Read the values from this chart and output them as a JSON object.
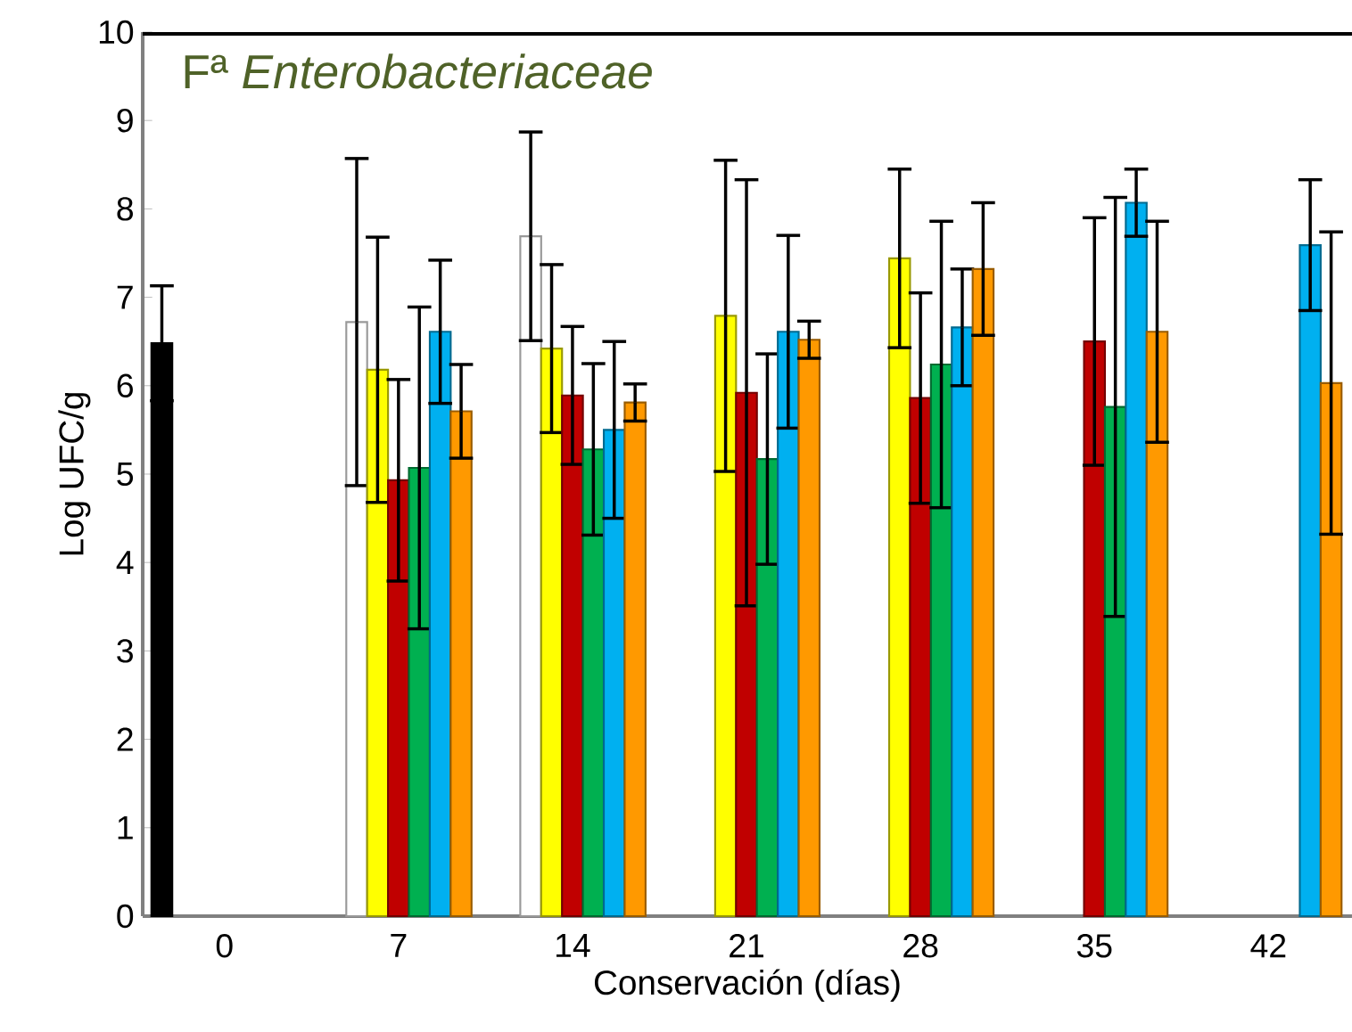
{
  "chart_data": {
    "type": "bar",
    "title": "Fª *Enterobacteriaceae*",
    "xlabel": "Conservación (días)",
    "ylabel": "Log UFC/g",
    "categories": [
      "0",
      "7",
      "14",
      "21",
      "28",
      "35",
      "42"
    ],
    "series": [
      {
        "color": "#000000",
        "values": [
          6.48,
          null,
          null,
          null,
          null,
          null,
          null
        ],
        "errors": [
          0.65,
          null,
          null,
          null,
          null,
          null,
          null
        ]
      },
      {
        "color": "#ffffff",
        "values": [
          null,
          6.72,
          7.69,
          null,
          null,
          null,
          null
        ],
        "errors": [
          null,
          1.85,
          1.18,
          null,
          null,
          null,
          null
        ]
      },
      {
        "color": "#ffff00",
        "values": [
          null,
          6.18,
          6.42,
          6.79,
          7.44,
          null,
          null
        ],
        "errors": [
          null,
          1.5,
          0.95,
          1.76,
          1.01,
          null,
          null
        ]
      },
      {
        "color": "#c00000",
        "values": [
          null,
          4.93,
          5.89,
          5.92,
          5.86,
          6.5,
          null
        ],
        "errors": [
          null,
          1.14,
          0.78,
          2.41,
          1.19,
          1.4,
          null
        ]
      },
      {
        "color": "#00b050",
        "values": [
          null,
          5.07,
          5.28,
          5.17,
          6.24,
          5.76,
          null
        ],
        "errors": [
          null,
          1.82,
          0.97,
          1.19,
          1.62,
          2.37,
          null
        ]
      },
      {
        "color": "#00b0f0",
        "values": [
          null,
          6.61,
          5.5,
          6.61,
          6.66,
          8.07,
          7.59
        ],
        "errors": [
          null,
          0.81,
          1.0,
          1.09,
          0.66,
          0.38,
          0.74
        ]
      },
      {
        "color": "#ff9900",
        "values": [
          null,
          5.71,
          5.81,
          6.52,
          7.32,
          6.61,
          6.03
        ],
        "errors": [
          null,
          0.53,
          0.21,
          0.21,
          0.75,
          1.25,
          1.71
        ]
      }
    ],
    "ylim": [
      0,
      10
    ],
    "yticks": [
      0,
      1,
      2,
      3,
      4,
      5,
      6,
      7,
      8,
      9,
      10
    ]
  }
}
